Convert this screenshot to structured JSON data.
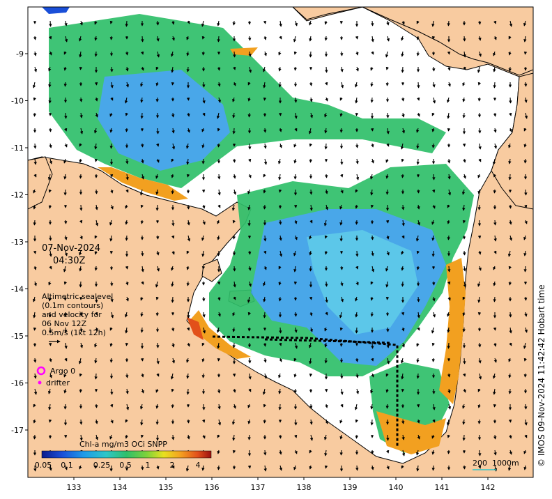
{
  "map": {
    "date": "07-Nov-2024",
    "time": "04:30Z",
    "legend_lines": [
      "Altimetric sealevel",
      "(0.1m contours)",
      "and velocity for",
      "06 Nov 12Z",
      "0.5m/s (1kt 12h)"
    ],
    "argo_label": "Argo 0",
    "drifter_label": "drifter",
    "colorbar": {
      "title": "Chl-a mg/m3 OCi SNPP",
      "ticks": [
        "0.05",
        "0.1",
        "0.25",
        "0.5",
        "1",
        "2",
        "4"
      ]
    },
    "scale_bar": {
      "label_200": "200",
      "label_1000": "1000m"
    },
    "credit": "© IMOS 09-Nov-2024 11:42:42 Hobart time",
    "x_ticks": [
      "133",
      "134",
      "135",
      "136",
      "137",
      "138",
      "139",
      "140",
      "141",
      "142"
    ],
    "y_ticks": [
      "-9",
      "-10",
      "-11",
      "-12",
      "-13",
      "-14",
      "-15",
      "-16",
      "-17"
    ],
    "colors": {
      "land": "#f8cba0",
      "coastline": "#000000",
      "low_chl": "#3aa0e8",
      "mid_chl": "#1fbf6a",
      "high_chl": "#f2a020",
      "argo": "#ff00ff"
    }
  }
}
